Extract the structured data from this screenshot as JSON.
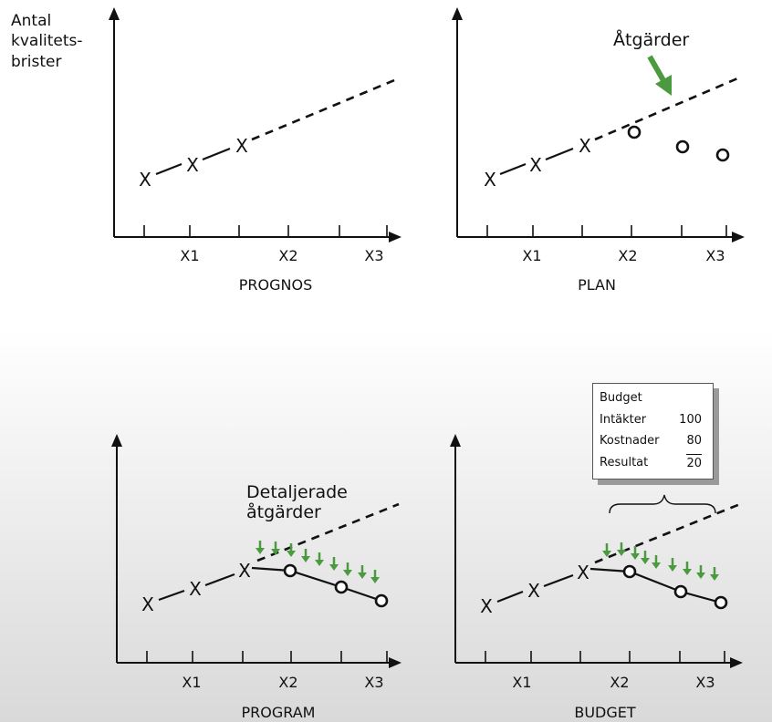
{
  "ylabel_lines": [
    "Antal",
    "kvalitets-",
    "brister"
  ],
  "x_ticks": [
    "X1",
    "X2",
    "X3"
  ],
  "mark_actual": "X",
  "panels": [
    {
      "title": "PROGNOS"
    },
    {
      "title": "PLAN",
      "annotation": "Åtgärder"
    },
    {
      "title": "PROGRAM",
      "annotation_lines": [
        "Detaljerade",
        "åtgärder"
      ]
    },
    {
      "title": "BUDGET"
    }
  ],
  "budget": {
    "title": "Budget",
    "rows": [
      {
        "label": "Intäkter",
        "value": "100"
      },
      {
        "label": "Kostnader",
        "value": "80"
      },
      {
        "label": "Resultat",
        "value": "20"
      }
    ]
  },
  "colors": {
    "arrow_green": "#4c9a3f",
    "ink": "#111111"
  }
}
